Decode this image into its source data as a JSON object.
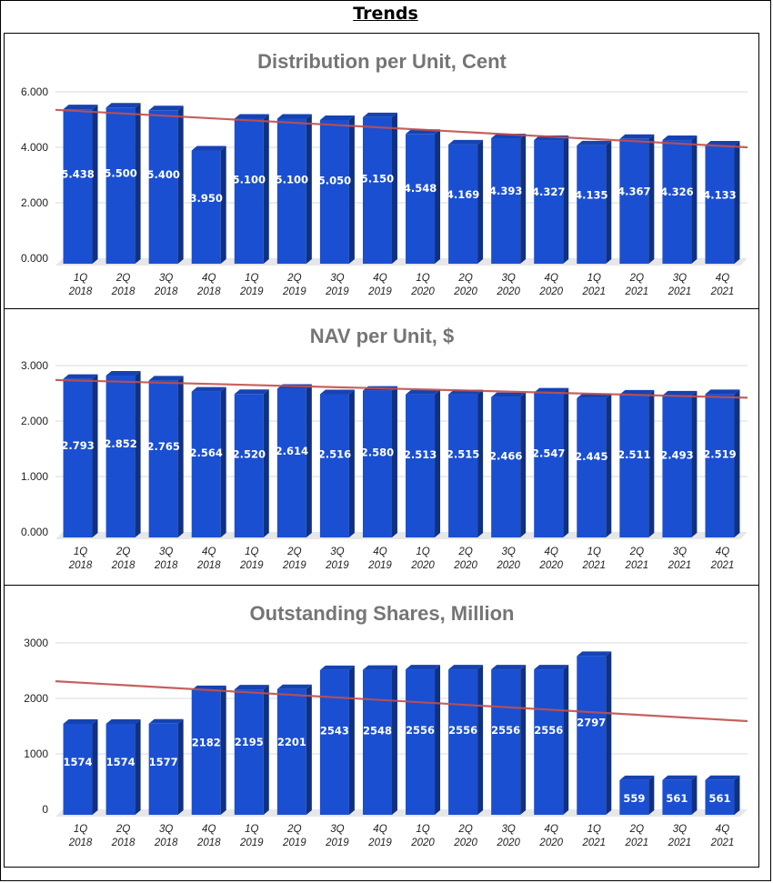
{
  "page_title": "Trends",
  "chart_data": [
    {
      "type": "bar",
      "title": "Distribution per Unit, Cent",
      "categories": [
        [
          "1Q",
          "2018"
        ],
        [
          "2Q",
          "2018"
        ],
        [
          "3Q",
          "2018"
        ],
        [
          "4Q",
          "2018"
        ],
        [
          "1Q",
          "2019"
        ],
        [
          "2Q",
          "2019"
        ],
        [
          "3Q",
          "2019"
        ],
        [
          "4Q",
          "2019"
        ],
        [
          "1Q",
          "2020"
        ],
        [
          "2Q",
          "2020"
        ],
        [
          "3Q",
          "2020"
        ],
        [
          "4Q",
          "2020"
        ],
        [
          "1Q",
          "2021"
        ],
        [
          "2Q",
          "2021"
        ],
        [
          "3Q",
          "2021"
        ],
        [
          "4Q",
          "2021"
        ]
      ],
      "values": [
        5.438,
        5.5,
        5.4,
        3.95,
        5.1,
        5.1,
        5.05,
        5.15,
        4.548,
        4.169,
        4.393,
        4.327,
        4.135,
        4.367,
        4.326,
        4.133
      ],
      "value_labels": [
        "5.438",
        "5.500",
        "5.400",
        "3.950",
        "5.100",
        "5.100",
        "5.050",
        "5.150",
        "4.548",
        "4.169",
        "4.393",
        "4.327",
        "4.135",
        "4.367",
        "4.326",
        "4.133"
      ],
      "yticks": [
        "0.000",
        "2.000",
        "4.000",
        "6.000"
      ],
      "ylim": [
        0,
        6
      ],
      "trendline": [
        5.35,
        4.0
      ],
      "bar_color": "#1a4fd1",
      "trend_color": "#c0504d",
      "grid": true
    },
    {
      "type": "bar",
      "title": "NAV per Unit, $",
      "categories": [
        [
          "1Q",
          "2018"
        ],
        [
          "2Q",
          "2018"
        ],
        [
          "3Q",
          "2018"
        ],
        [
          "4Q",
          "2018"
        ],
        [
          "1Q",
          "2019"
        ],
        [
          "2Q",
          "2019"
        ],
        [
          "3Q",
          "2019"
        ],
        [
          "4Q",
          "2019"
        ],
        [
          "1Q",
          "2020"
        ],
        [
          "2Q",
          "2020"
        ],
        [
          "3Q",
          "2020"
        ],
        [
          "4Q",
          "2020"
        ],
        [
          "1Q",
          "2021"
        ],
        [
          "2Q",
          "2021"
        ],
        [
          "3Q",
          "2021"
        ],
        [
          "4Q",
          "2021"
        ]
      ],
      "values": [
        2.793,
        2.852,
        2.765,
        2.564,
        2.52,
        2.614,
        2.516,
        2.58,
        2.513,
        2.515,
        2.466,
        2.547,
        2.445,
        2.511,
        2.493,
        2.519
      ],
      "value_labels": [
        "2.793",
        "2.852",
        "2.765",
        "2.564",
        "2.520",
        "2.614",
        "2.516",
        "2.580",
        "2.513",
        "2.515",
        "2.466",
        "2.547",
        "2.445",
        "2.511",
        "2.493",
        "2.519"
      ],
      "yticks": [
        "0.000",
        "1.000",
        "2.000",
        "3.000"
      ],
      "ylim": [
        0,
        3
      ],
      "trendline": [
        2.74,
        2.42
      ],
      "bar_color": "#1a4fd1",
      "trend_color": "#c0504d",
      "grid": true
    },
    {
      "type": "bar",
      "title": "Outstanding Shares, Million",
      "categories": [
        [
          "1Q",
          "2018"
        ],
        [
          "2Q",
          "2018"
        ],
        [
          "3Q",
          "2018"
        ],
        [
          "4Q",
          "2018"
        ],
        [
          "1Q",
          "2019"
        ],
        [
          "2Q",
          "2019"
        ],
        [
          "3Q",
          "2019"
        ],
        [
          "4Q",
          "2019"
        ],
        [
          "1Q",
          "2020"
        ],
        [
          "2Q",
          "2020"
        ],
        [
          "3Q",
          "2020"
        ],
        [
          "4Q",
          "2020"
        ],
        [
          "1Q",
          "2021"
        ],
        [
          "2Q",
          "2021"
        ],
        [
          "3Q",
          "2021"
        ],
        [
          "4Q",
          "2021"
        ]
      ],
      "values": [
        1574,
        1574,
        1577,
        2182,
        2195,
        2201,
        2543,
        2548,
        2556,
        2556,
        2556,
        2556,
        2797,
        559,
        561,
        561
      ],
      "value_labels": [
        "1574",
        "1574",
        "1577",
        "2182",
        "2195",
        "2201",
        "2543",
        "2548",
        "2556",
        "2556",
        "2556",
        "2556",
        "2797",
        "559",
        "561",
        "561"
      ],
      "yticks": [
        "0",
        "1000",
        "2000",
        "3000"
      ],
      "ylim": [
        0,
        3000
      ],
      "trendline": [
        2310,
        1590
      ],
      "bar_color": "#1a4fd1",
      "trend_color": "#c0504d",
      "grid": true
    }
  ]
}
